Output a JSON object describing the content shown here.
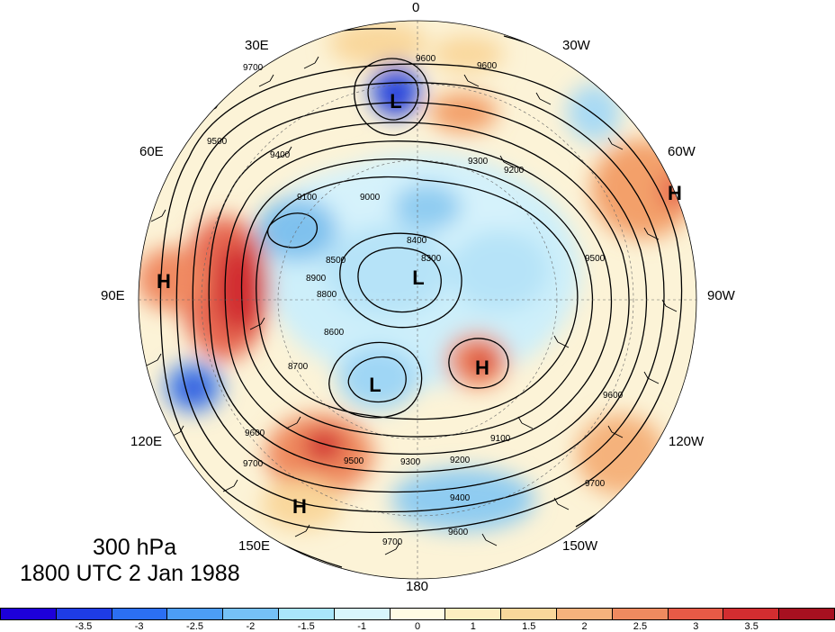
{
  "map": {
    "projection": "north polar stereographic",
    "longitude_labels": [
      {
        "id": "0",
        "text": "0"
      },
      {
        "id": "30E",
        "text": "30E"
      },
      {
        "id": "30W",
        "text": "30W"
      },
      {
        "id": "60E",
        "text": "60E"
      },
      {
        "id": "60W",
        "text": "60W"
      },
      {
        "id": "90E",
        "text": "90E"
      },
      {
        "id": "90W",
        "text": "90W"
      },
      {
        "id": "120E",
        "text": "120E"
      },
      {
        "id": "120W",
        "text": "120W"
      },
      {
        "id": "150E",
        "text": "150E"
      },
      {
        "id": "150W",
        "text": "150W"
      },
      {
        "id": "180",
        "text": "180"
      }
    ],
    "pressure_centers": [
      {
        "type": "L",
        "label": "L"
      },
      {
        "type": "L",
        "label": "L"
      },
      {
        "type": "L",
        "label": "L"
      },
      {
        "type": "H",
        "label": "H"
      },
      {
        "type": "H",
        "label": "H"
      },
      {
        "type": "H",
        "label": "H"
      },
      {
        "type": "H",
        "label": "H"
      }
    ],
    "contour_labels": [
      "9700",
      "9600",
      "9600",
      "9500",
      "9400",
      "9300",
      "9200",
      "9100",
      "9000",
      "8900",
      "8800",
      "8700",
      "8600",
      "8500",
      "8400",
      "8300",
      "9700",
      "9600",
      "9500",
      "9400",
      "9300",
      "9100",
      "9200",
      "9500",
      "9600",
      "9700",
      "9600",
      "9700"
    ],
    "colors": {
      "strong_negative": "#1b20d6",
      "negative": "#7fc1ee",
      "weak_negative": "#d3f1fb",
      "weak_positive": "#fbeec1",
      "positive": "#f3a06b",
      "strong_positive": "#d62f2f",
      "contour": "#000000"
    }
  },
  "caption": {
    "level": "300 hPa",
    "datetime": "1800 UTC 2 Jan 1988"
  },
  "colorbar": {
    "colors": [
      "#1d00d9",
      "#1e3ce6",
      "#2b6ff2",
      "#4c9df5",
      "#75c1f7",
      "#a9e6fb",
      "#d8f6fd",
      "#fffce4",
      "#fdeec0",
      "#f9d79b",
      "#f5b27c",
      "#ef8a5f",
      "#e75a46",
      "#d22d30",
      "#a71020"
    ],
    "tick_labels": [
      "-3.5",
      "-3",
      "-2.5",
      "-2",
      "-1.5",
      "-1",
      "0",
      "1",
      "1.5",
      "2",
      "2.5",
      "3",
      "3.5"
    ]
  }
}
